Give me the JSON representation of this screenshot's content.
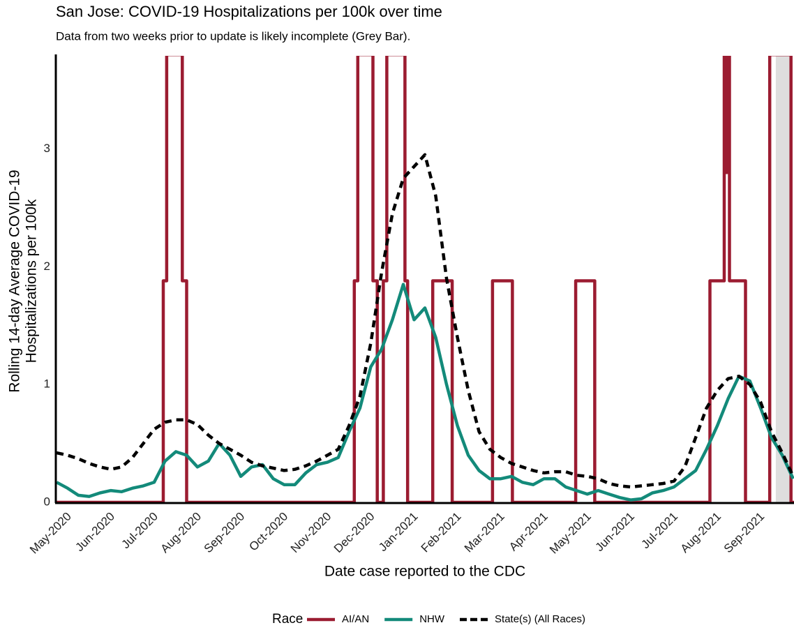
{
  "chart_data": {
    "type": "line",
    "title": "San Jose: COVID-19 Hospitalizations per 100k over time",
    "subtitle": "Data from two weeks prior to update is likely incomplete (Grey Bar).",
    "xlabel": "Date case reported to the CDC",
    "ylabel": [
      "Rolling 14-day Average COVID-19",
      "Hospitalizations per 100k"
    ],
    "legend_title": "Race",
    "legend_position": "bottom",
    "xlim": [
      0.68,
      17.72
    ],
    "ylim": [
      0,
      3.79
    ],
    "xticks": [
      {
        "value": 1,
        "label": "May-2020"
      },
      {
        "value": 2,
        "label": "Jun-2020"
      },
      {
        "value": 3,
        "label": "Jul-2020"
      },
      {
        "value": 4,
        "label": "Aug-2020"
      },
      {
        "value": 5,
        "label": "Sep-2020"
      },
      {
        "value": 6,
        "label": "Oct-2020"
      },
      {
        "value": 7,
        "label": "Nov-2020"
      },
      {
        "value": 8,
        "label": "Dec-2020"
      },
      {
        "value": 9,
        "label": "Jan-2021"
      },
      {
        "value": 10,
        "label": "Feb-2021"
      },
      {
        "value": 11,
        "label": "Mar-2021"
      },
      {
        "value": 12,
        "label": "Apr-2021"
      },
      {
        "value": 13,
        "label": "May-2021"
      },
      {
        "value": 14,
        "label": "Jun-2021"
      },
      {
        "value": 15,
        "label": "Jul-2021"
      },
      {
        "value": 16,
        "label": "Aug-2021"
      },
      {
        "value": 17,
        "label": "Sep-2021"
      }
    ],
    "yticks": [
      0,
      1,
      2,
      3
    ],
    "grid": false,
    "shaded_region": {
      "x": [
        17.3,
        17.65
      ],
      "color": "#dedede"
    },
    "series": [
      {
        "name": "AI/AN",
        "color": "#9b1c31",
        "linestyle": "solid",
        "x": [
          0.68,
          3.16,
          3.16,
          3.24,
          3.24,
          3.6,
          3.6,
          3.7,
          3.7,
          7.57,
          7.57,
          7.65,
          7.65,
          8.0,
          8.0,
          8.1,
          8.1,
          8.24,
          8.24,
          8.32,
          8.32,
          8.74,
          8.74,
          8.8,
          8.8,
          9.38,
          9.38,
          9.83,
          9.83,
          10.76,
          10.76,
          11.22,
          11.22,
          12.68,
          12.68,
          13.12,
          13.12,
          15.78,
          15.78,
          16.11,
          16.11,
          16.15,
          16.15,
          16.18,
          16.18,
          16.23,
          16.23,
          16.6,
          16.6,
          17.16,
          17.16,
          17.65,
          17.65,
          17.72
        ],
        "values": [
          0,
          0,
          1.88,
          1.88,
          3.8,
          3.8,
          1.88,
          1.88,
          0,
          0,
          1.88,
          1.88,
          3.8,
          3.8,
          1.88,
          1.88,
          0,
          0,
          1.88,
          1.88,
          3.8,
          3.8,
          1.88,
          1.88,
          0,
          0,
          1.88,
          1.88,
          0,
          0,
          1.88,
          1.88,
          0,
          0,
          1.88,
          1.88,
          0,
          0,
          1.88,
          1.88,
          3.8,
          3.8,
          2.8,
          2.8,
          3.8,
          3.8,
          1.88,
          1.88,
          0,
          0,
          3.8,
          3.8,
          0,
          0
        ]
      },
      {
        "name": "NHW",
        "color": "#138a7a",
        "linestyle": "solid",
        "x": [
          0.7,
          0.95,
          1.2,
          1.45,
          1.7,
          1.95,
          2.2,
          2.45,
          2.7,
          2.95,
          3.2,
          3.45,
          3.7,
          3.95,
          4.2,
          4.45,
          4.7,
          4.95,
          5.2,
          5.45,
          5.7,
          5.95,
          6.2,
          6.45,
          6.7,
          6.95,
          7.2,
          7.45,
          7.7,
          7.95,
          8.2,
          8.45,
          8.7,
          8.95,
          9.2,
          9.45,
          9.7,
          9.95,
          10.2,
          10.45,
          10.7,
          10.95,
          11.2,
          11.45,
          11.7,
          11.95,
          12.2,
          12.45,
          12.7,
          12.95,
          13.2,
          13.45,
          13.7,
          13.95,
          14.2,
          14.45,
          14.7,
          14.95,
          15.2,
          15.45,
          15.7,
          15.95,
          16.2,
          16.45,
          16.7,
          16.95,
          17.2,
          17.45,
          17.7
        ],
        "values": [
          0.17,
          0.12,
          0.06,
          0.05,
          0.08,
          0.1,
          0.09,
          0.12,
          0.14,
          0.17,
          0.35,
          0.43,
          0.4,
          0.3,
          0.35,
          0.5,
          0.4,
          0.22,
          0.3,
          0.32,
          0.2,
          0.15,
          0.15,
          0.25,
          0.32,
          0.34,
          0.38,
          0.6,
          0.8,
          1.15,
          1.3,
          1.55,
          1.85,
          1.55,
          1.65,
          1.4,
          1.0,
          0.65,
          0.4,
          0.27,
          0.2,
          0.2,
          0.22,
          0.17,
          0.15,
          0.2,
          0.2,
          0.13,
          0.1,
          0.07,
          0.1,
          0.07,
          0.04,
          0.02,
          0.03,
          0.08,
          0.1,
          0.13,
          0.2,
          0.27,
          0.45,
          0.65,
          0.88,
          1.07,
          1.03,
          0.8,
          0.55,
          0.4,
          0.2
        ]
      },
      {
        "name": "State(s) (All Races)",
        "color": "#000000",
        "linestyle": "dashed",
        "x": [
          0.7,
          0.95,
          1.2,
          1.45,
          1.7,
          1.95,
          2.2,
          2.45,
          2.7,
          2.95,
          3.2,
          3.45,
          3.7,
          3.95,
          4.2,
          4.45,
          4.7,
          4.95,
          5.2,
          5.45,
          5.7,
          5.95,
          6.2,
          6.45,
          6.7,
          6.95,
          7.2,
          7.45,
          7.7,
          7.95,
          8.2,
          8.45,
          8.7,
          8.95,
          9.2,
          9.45,
          9.7,
          9.95,
          10.2,
          10.45,
          10.7,
          10.95,
          11.2,
          11.45,
          11.7,
          11.95,
          12.2,
          12.45,
          12.7,
          12.95,
          13.2,
          13.45,
          13.7,
          13.95,
          14.2,
          14.45,
          14.7,
          14.95,
          15.2,
          15.45,
          15.7,
          15.95,
          16.2,
          16.45,
          16.7,
          16.95,
          17.2,
          17.45,
          17.7
        ],
        "values": [
          0.42,
          0.4,
          0.37,
          0.33,
          0.3,
          0.28,
          0.3,
          0.38,
          0.5,
          0.62,
          0.68,
          0.7,
          0.7,
          0.66,
          0.57,
          0.5,
          0.45,
          0.4,
          0.34,
          0.31,
          0.29,
          0.27,
          0.28,
          0.31,
          0.35,
          0.4,
          0.45,
          0.65,
          0.9,
          1.35,
          1.95,
          2.45,
          2.75,
          2.85,
          2.95,
          2.6,
          1.9,
          1.4,
          0.95,
          0.6,
          0.45,
          0.38,
          0.33,
          0.3,
          0.27,
          0.25,
          0.26,
          0.26,
          0.23,
          0.22,
          0.2,
          0.16,
          0.14,
          0.13,
          0.14,
          0.15,
          0.16,
          0.18,
          0.3,
          0.55,
          0.8,
          0.95,
          1.05,
          1.07,
          1.0,
          0.85,
          0.6,
          0.42,
          0.22
        ]
      }
    ]
  }
}
